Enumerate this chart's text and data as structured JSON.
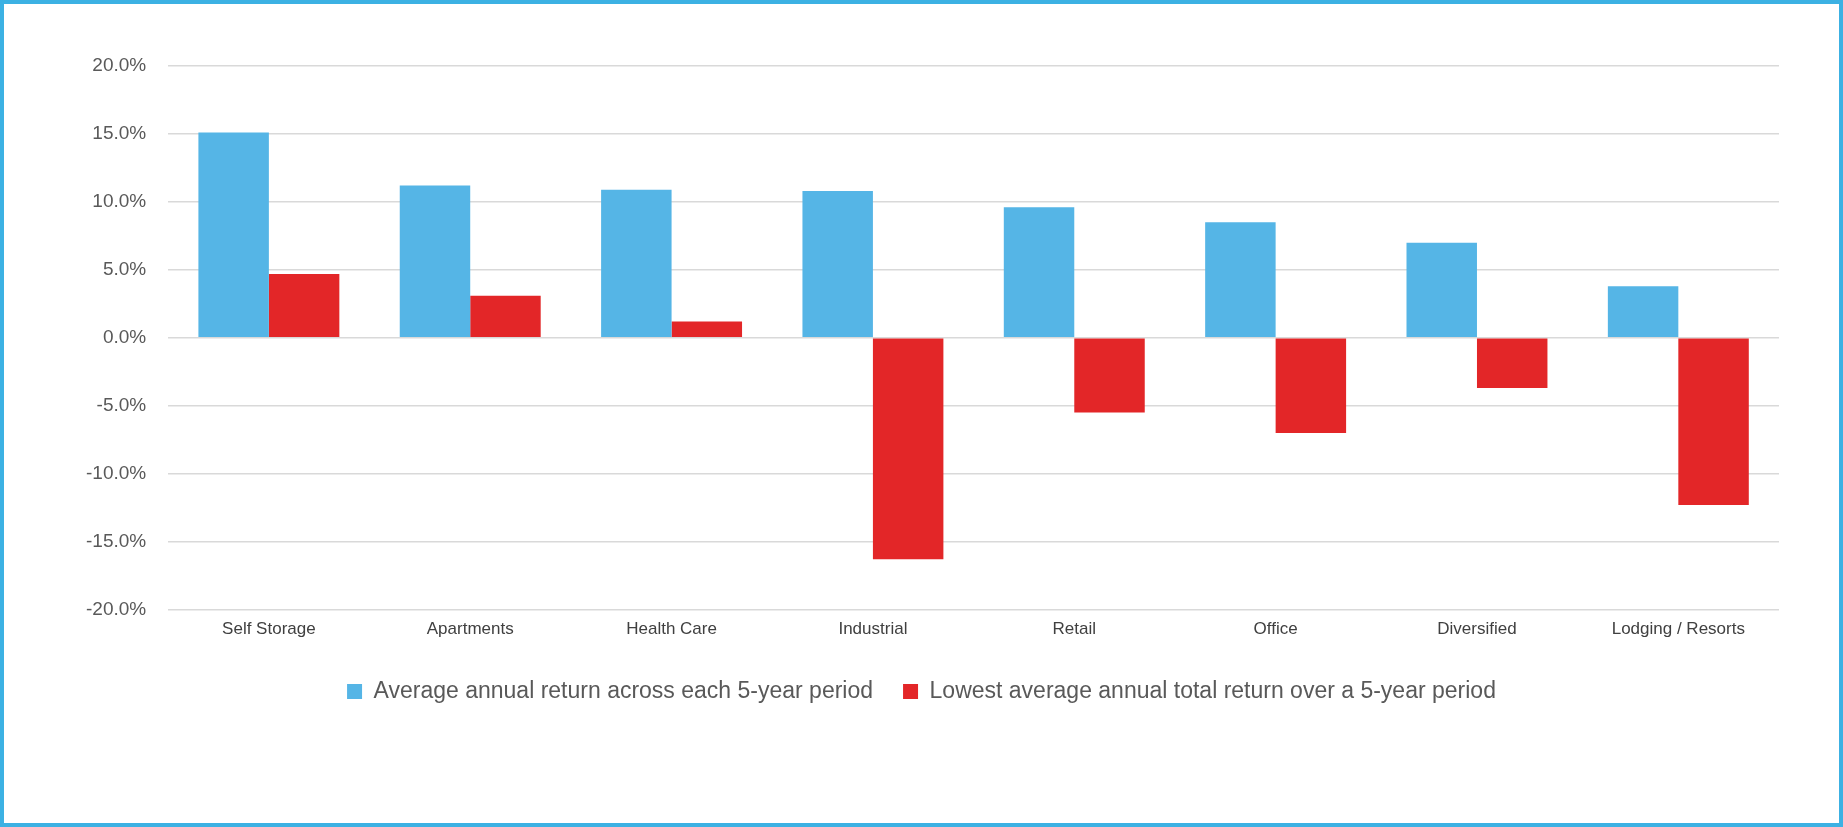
{
  "chart_data": {
    "type": "bar",
    "categories": [
      "Self Storage",
      "Apartments",
      "Health Care",
      "Industrial",
      "Retail",
      "Office",
      "Diversified",
      "Lodging / Resorts"
    ],
    "series": [
      {
        "name": "Average annual return across each 5-year period",
        "color": "#55b5e6",
        "values": [
          15.1,
          11.2,
          10.9,
          10.8,
          9.6,
          8.5,
          7.0,
          3.8
        ]
      },
      {
        "name": "Lowest average annual total return over a 5-year period",
        "color": "#e32628",
        "values": [
          4.7,
          3.1,
          1.2,
          -16.3,
          -5.5,
          -7.0,
          -3.7,
          -12.3
        ]
      }
    ],
    "ylim": [
      -20,
      20
    ],
    "yticks": [
      {
        "value": -20,
        "label": "-20.0%"
      },
      {
        "value": -15,
        "label": "-15.0%"
      },
      {
        "value": -10,
        "label": "-10.0%"
      },
      {
        "value": -5,
        "label": "-5.0%"
      },
      {
        "value": 0,
        "label": "0.0%"
      },
      {
        "value": 5,
        "label": "5.0%"
      },
      {
        "value": 10,
        "label": "10.0%"
      },
      {
        "value": 15,
        "label": "15.0%"
      },
      {
        "value": 20,
        "label": "20.0%"
      }
    ],
    "grid": "y",
    "legend": "bottom"
  }
}
